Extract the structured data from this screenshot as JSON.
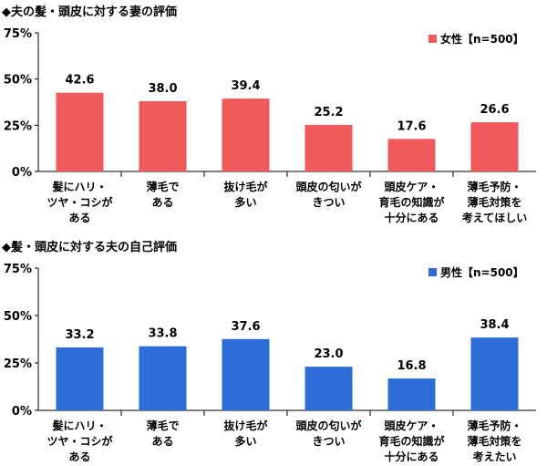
{
  "chart_data": [
    {
      "type": "bar",
      "title": "◆夫の髪・頭皮に対する妻の評価",
      "categories": [
        [
          "髪にハリ・",
          "ツヤ・コシが",
          "ある"
        ],
        [
          "薄毛で",
          "ある"
        ],
        [
          "抜け毛が",
          "多い"
        ],
        [
          "頭皮の匂いが",
          "きつい"
        ],
        [
          "頭皮ケア・",
          "育毛の知識が",
          "十分にある"
        ],
        [
          "薄毛予防・",
          "薄毛対策を",
          "考えてほしい"
        ]
      ],
      "series": [
        {
          "name": "女性【n=500】",
          "values": [
            42.6,
            38.0,
            39.4,
            25.2,
            17.6,
            26.6
          ],
          "color": "#f15a5a"
        }
      ],
      "value_labels": [
        "42.6",
        "38.0",
        "39.4",
        "25.2",
        "17.6",
        "26.6"
      ],
      "yticks": [
        "0%",
        "25%",
        "50%",
        "75%"
      ],
      "ylim": [
        0,
        75
      ],
      "legend_position": "top-right",
      "grid": false
    },
    {
      "type": "bar",
      "title": "◆髪・頭皮に対する夫の自己評価",
      "categories": [
        [
          "髪にハリ・",
          "ツヤ・コシが",
          "ある"
        ],
        [
          "薄毛で",
          "ある"
        ],
        [
          "抜け毛が",
          "多い"
        ],
        [
          "頭皮の匂いが",
          "きつい"
        ],
        [
          "頭皮ケア・",
          "育毛の知識が",
          "十分にある"
        ],
        [
          "薄毛予防・",
          "薄毛対策を",
          "考えたい"
        ]
      ],
      "series": [
        {
          "name": "男性【n=500】",
          "values": [
            33.2,
            33.8,
            37.6,
            23.0,
            16.8,
            38.4
          ],
          "color": "#2e6cd8"
        }
      ],
      "value_labels": [
        "33.2",
        "33.8",
        "37.6",
        "23.0",
        "16.8",
        "38.4"
      ],
      "yticks": [
        "0%",
        "25%",
        "50%",
        "75%"
      ],
      "ylim": [
        0,
        75
      ],
      "legend_position": "top-right",
      "grid": false
    }
  ]
}
